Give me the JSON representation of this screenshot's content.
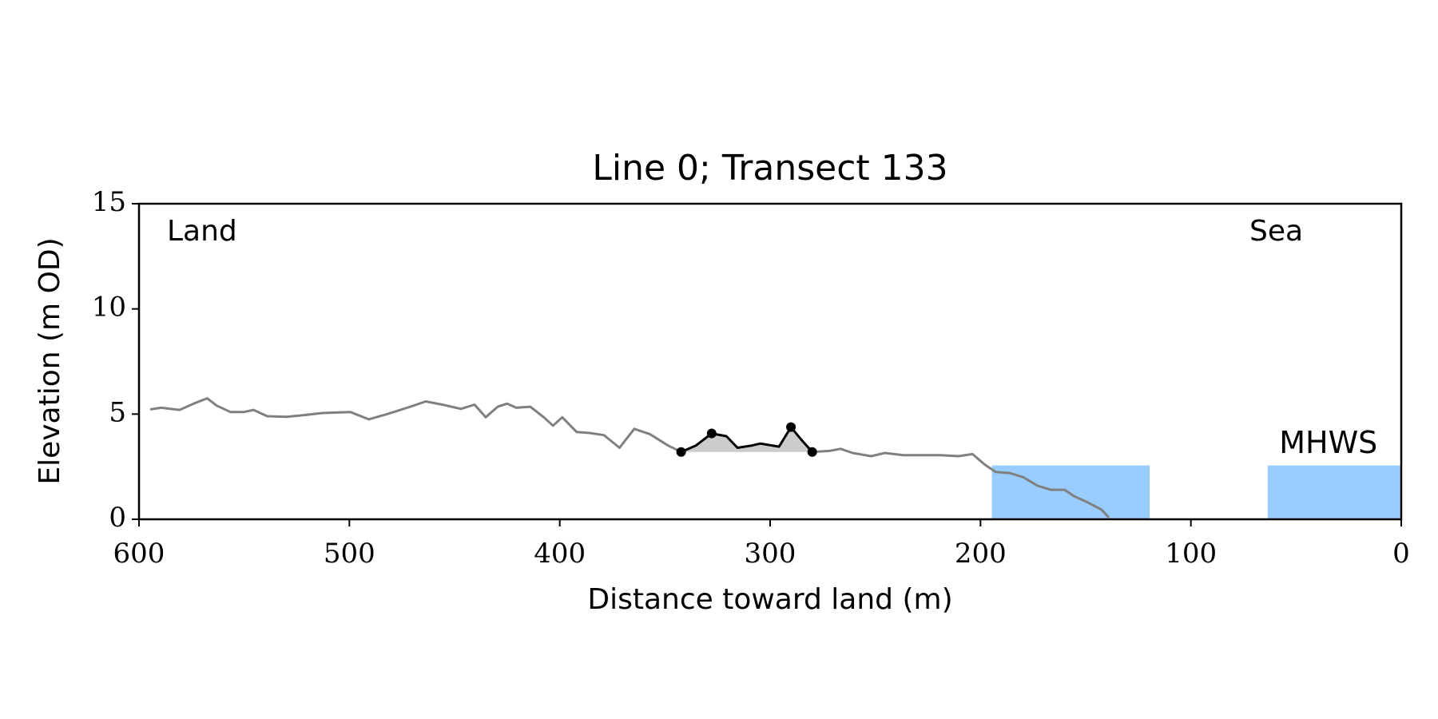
{
  "chart_data": {
    "type": "line",
    "title": "Line 0; Transect 133",
    "x_label": "Distance toward land (m)",
    "y_label": "Elevation (m OD)",
    "xlim": [
      600,
      0
    ],
    "ylim": [
      0,
      15
    ],
    "xticks": [
      600,
      500,
      400,
      300,
      200,
      100,
      0
    ],
    "yticks": [
      0,
      5,
      10,
      15
    ],
    "annotations": [
      {
        "text": "Land"
      },
      {
        "text": "Sea"
      }
    ],
    "series": [
      {
        "color": "#808080",
        "x": [
          594.7,
          589.5,
          580.7,
          574,
          567.6,
          563,
          556.6,
          550,
          545.6,
          539,
          530,
          521.5,
          512.8,
          499.6,
          490.8,
          482,
          471,
          463.7,
          455.8,
          447,
          440.5,
          435.2,
          429.5,
          425,
          420.7,
          414,
          407.6,
          403.2,
          398.8,
          392,
          385.7,
          379,
          371.6,
          364.6,
          357.2,
          348.4,
          342.3,
          null,
          280,
          271.7,
          266.5,
          260.8,
          252,
          245.4,
          236.7,
          227.9,
          219,
          210.4,
          203.8,
          198,
          192.8,
          186.3,
          179.7,
          173,
          166.5,
          160,
          155.6,
          149,
          142.4,
          139
        ],
        "values": [
          5.22,
          5.3,
          5.2,
          5.5,
          5.75,
          5.4,
          5.1,
          5.1,
          5.2,
          4.9,
          4.87,
          4.95,
          5.05,
          5.1,
          4.75,
          5.0,
          5.35,
          5.6,
          5.45,
          5.25,
          5.45,
          4.85,
          5.35,
          5.5,
          5.3,
          5.35,
          4.85,
          4.45,
          4.85,
          4.15,
          4.1,
          4.0,
          3.4,
          4.3,
          4.05,
          3.5,
          3.2,
          null,
          3.2,
          3.25,
          3.35,
          3.15,
          3.0,
          3.15,
          3.05,
          3.05,
          3.05,
          3.0,
          3.1,
          2.6,
          2.25,
          2.2,
          2.0,
          1.6,
          1.4,
          1.4,
          1.1,
          0.8,
          0.45,
          0.08
        ]
      },
      {
        "color": "#000000",
        "fill": "#cccccc",
        "x": [
          342.3,
          335.3,
          327.8,
          320.8,
          315.5,
          309,
          304.6,
          295.8,
          290.1,
          284.9,
          280
        ],
        "values": [
          3.2,
          3.5,
          4.08,
          3.95,
          3.4,
          3.5,
          3.6,
          3.45,
          4.38,
          3.75,
          3.2
        ],
        "marker_x": [
          342.3,
          327.8,
          290.1,
          280
        ],
        "marker_values": [
          3.2,
          4.08,
          4.38,
          3.2
        ]
      }
    ],
    "mhws": {
      "label": "MHWS",
      "level": 2.56,
      "color": "#99ccff",
      "label_color": "#6699cc",
      "extents": [
        [
          194.6,
          119.6
        ],
        [
          63.5,
          0
        ]
      ]
    }
  }
}
